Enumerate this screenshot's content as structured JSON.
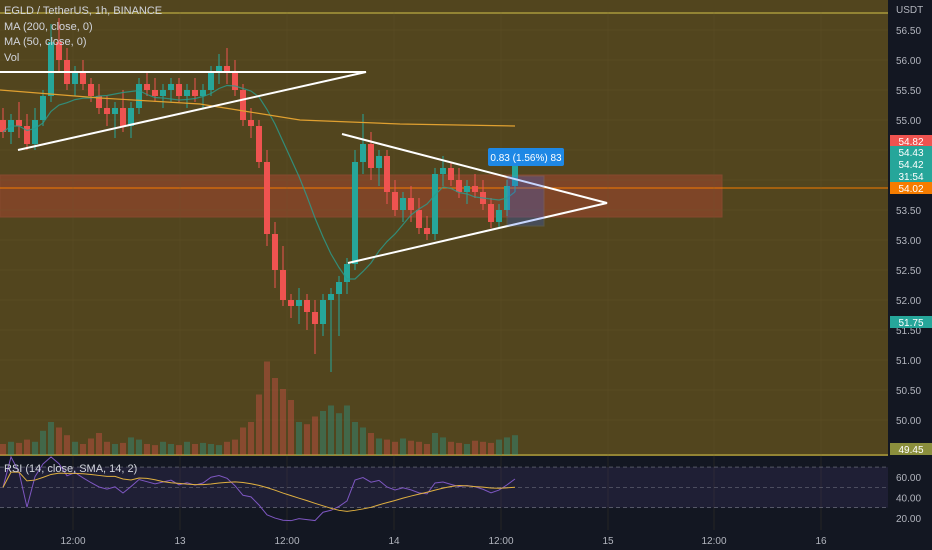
{
  "chart_data": {
    "type": "candlestick",
    "symbol": "EGLD / TetherUS, 1h, BINANCE",
    "currency": "USDT",
    "indicators": [
      "MA (200, close, 0)",
      "MA (50, close, 0)",
      "Vol"
    ],
    "rsi_label": "RSI (14, close, SMA, 14, 2)",
    "y_ticks": [
      "56.50",
      "56.00",
      "55.50",
      "55.00",
      "54.50",
      "54.00",
      "53.50",
      "53.00",
      "52.50",
      "52.00",
      "51.50",
      "51.00",
      "50.50",
      "50.00"
    ],
    "rsi_ticks": [
      "60.00",
      "40.00",
      "20.00"
    ],
    "x_ticks": [
      "12:00",
      "13",
      "12:00",
      "14",
      "12:00",
      "15",
      "12:00",
      "16"
    ],
    "price_tags": [
      {
        "label": "54.82",
        "color": "#ef5350"
      },
      {
        "label": "54.43",
        "color": "#26a69a"
      },
      {
        "label": "54.42",
        "color": "#26a69a"
      },
      {
        "label": "31:54",
        "color": "#26a69a"
      },
      {
        "label": "54.02",
        "color": "#f57c00"
      },
      {
        "label": "51.75",
        "color": "#26a69a"
      },
      {
        "label": "49.45",
        "color": "#8b8f3d"
      }
    ],
    "measure_label": "0.83 (1.56%) 83",
    "candles": [
      [
        55.0,
        55.2,
        54.7,
        54.8
      ],
      [
        54.8,
        55.1,
        54.6,
        55.0
      ],
      [
        55.0,
        55.3,
        54.7,
        54.9
      ],
      [
        54.9,
        55.1,
        54.5,
        54.6
      ],
      [
        54.6,
        55.2,
        54.5,
        55.0
      ],
      [
        55.0,
        55.5,
        54.9,
        55.4
      ],
      [
        55.4,
        56.6,
        55.3,
        56.3
      ],
      [
        56.3,
        56.7,
        55.8,
        56.0
      ],
      [
        56.0,
        56.2,
        55.5,
        55.6
      ],
      [
        55.6,
        55.9,
        55.4,
        55.8
      ],
      [
        55.8,
        56.0,
        55.5,
        55.6
      ],
      [
        55.6,
        55.7,
        55.3,
        55.4
      ],
      [
        55.4,
        55.6,
        55.1,
        55.2
      ],
      [
        55.2,
        55.4,
        54.9,
        55.1
      ],
      [
        55.1,
        55.3,
        54.7,
        55.2
      ],
      [
        55.2,
        55.5,
        54.8,
        54.9
      ],
      [
        54.9,
        55.3,
        54.7,
        55.2
      ],
      [
        55.2,
        55.7,
        55.1,
        55.6
      ],
      [
        55.6,
        55.8,
        55.4,
        55.5
      ],
      [
        55.5,
        55.7,
        55.3,
        55.4
      ],
      [
        55.4,
        55.6,
        55.2,
        55.5
      ],
      [
        55.5,
        55.7,
        55.3,
        55.6
      ],
      [
        55.6,
        55.7,
        55.3,
        55.4
      ],
      [
        55.4,
        55.6,
        55.2,
        55.5
      ],
      [
        55.5,
        55.7,
        55.3,
        55.4
      ],
      [
        55.4,
        55.6,
        55.2,
        55.5
      ],
      [
        55.5,
        55.9,
        55.4,
        55.8
      ],
      [
        55.8,
        56.1,
        55.6,
        55.9
      ],
      [
        55.9,
        56.2,
        55.6,
        55.8
      ],
      [
        55.8,
        56.0,
        55.4,
        55.5
      ],
      [
        55.5,
        55.6,
        54.9,
        55.0
      ],
      [
        55.0,
        55.2,
        54.7,
        54.9
      ],
      [
        54.9,
        55.0,
        54.2,
        54.3
      ],
      [
        54.3,
        54.5,
        52.9,
        53.1
      ],
      [
        53.1,
        53.3,
        52.2,
        52.5
      ],
      [
        52.5,
        52.9,
        51.9,
        52.0
      ],
      [
        52.0,
        52.1,
        51.7,
        51.9
      ],
      [
        51.9,
        52.2,
        51.6,
        52.0
      ],
      [
        52.0,
        52.1,
        51.5,
        51.8
      ],
      [
        51.8,
        52.0,
        51.1,
        51.6
      ],
      [
        51.6,
        52.1,
        51.4,
        52.0
      ],
      [
        52.0,
        52.2,
        50.8,
        52.1
      ],
      [
        52.1,
        52.4,
        51.4,
        52.3
      ],
      [
        52.3,
        52.7,
        52.1,
        52.6
      ],
      [
        52.6,
        54.5,
        52.5,
        54.3
      ],
      [
        54.3,
        55.1,
        54.1,
        54.6
      ],
      [
        54.6,
        54.8,
        54.0,
        54.2
      ],
      [
        54.2,
        54.5,
        53.9,
        54.4
      ],
      [
        54.4,
        54.5,
        53.6,
        53.8
      ],
      [
        53.8,
        54.0,
        53.4,
        53.5
      ],
      [
        53.5,
        53.8,
        53.3,
        53.7
      ],
      [
        53.7,
        53.9,
        53.3,
        53.5
      ],
      [
        53.5,
        53.7,
        53.1,
        53.2
      ],
      [
        53.2,
        53.4,
        53.0,
        53.1
      ],
      [
        53.1,
        54.2,
        53.0,
        54.1
      ],
      [
        54.1,
        54.4,
        53.9,
        54.2
      ],
      [
        54.2,
        54.3,
        53.9,
        54.0
      ],
      [
        54.0,
        54.2,
        53.7,
        53.8
      ],
      [
        53.8,
        54.0,
        53.6,
        53.9
      ],
      [
        53.9,
        54.1,
        53.7,
        53.8
      ],
      [
        53.8,
        54.0,
        53.5,
        53.6
      ],
      [
        53.6,
        53.7,
        53.2,
        53.3
      ],
      [
        53.3,
        53.6,
        53.2,
        53.5
      ],
      [
        53.5,
        54.0,
        53.4,
        53.9
      ],
      [
        53.9,
        54.5,
        53.8,
        54.43
      ]
    ],
    "volumes": [
      0.1,
      0.12,
      0.11,
      0.14,
      0.12,
      0.22,
      0.3,
      0.25,
      0.18,
      0.12,
      0.1,
      0.15,
      0.2,
      0.12,
      0.1,
      0.11,
      0.16,
      0.14,
      0.1,
      0.09,
      0.12,
      0.1,
      0.09,
      0.12,
      0.1,
      0.11,
      0.1,
      0.09,
      0.12,
      0.14,
      0.25,
      0.3,
      0.55,
      0.85,
      0.7,
      0.6,
      0.5,
      0.3,
      0.28,
      0.35,
      0.4,
      0.45,
      0.38,
      0.45,
      0.3,
      0.25,
      0.2,
      0.15,
      0.14,
      0.12,
      0.15,
      0.13,
      0.12,
      0.1,
      0.2,
      0.16,
      0.12,
      0.11,
      0.1,
      0.13,
      0.12,
      0.11,
      0.14,
      0.16,
      0.18
    ],
    "y_range": [
      49.4,
      56.8
    ],
    "rsi_range": [
      10,
      75
    ]
  }
}
